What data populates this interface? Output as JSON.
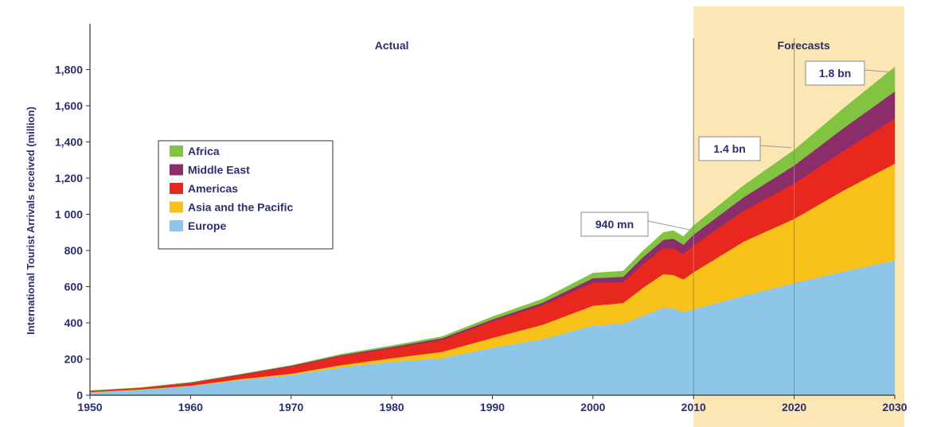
{
  "chart_data": {
    "type": "area",
    "stacked": true,
    "ylabel": "International Tourist Arrivals received (million)",
    "ylim": [
      0,
      2000
    ],
    "xlim": [
      1950,
      2030
    ],
    "x_ticks": [
      "1950",
      "1960",
      "1970",
      "1980",
      "1990",
      "2000",
      "2010",
      "2020",
      "2030"
    ],
    "y_ticks": [
      {
        "value": 0,
        "label": "0"
      },
      {
        "value": 200,
        "label": "200"
      },
      {
        "value": 400,
        "label": "400"
      },
      {
        "value": 600,
        "label": "600"
      },
      {
        "value": 800,
        "label": "800"
      },
      {
        "value": 1000,
        "label": "1 000"
      },
      {
        "value": 1200,
        "label": "1,200"
      },
      {
        "value": 1400,
        "label": "1,400"
      },
      {
        "value": 1600,
        "label": "1,600"
      },
      {
        "value": 1800,
        "label": "1,800"
      }
    ],
    "periods": [
      {
        "label": "Actual",
        "from": 1950,
        "to": 2010,
        "shaded": false
      },
      {
        "label": "Forecasts",
        "from": 2010,
        "to": 2030,
        "shaded": true,
        "color": "#fbe6b4"
      }
    ],
    "reference_lines": [
      2010,
      2020
    ],
    "x": [
      1950,
      1955,
      1960,
      1965,
      1970,
      1975,
      1980,
      1985,
      1990,
      1995,
      2000,
      2003,
      2005,
      2007,
      2008,
      2009,
      2010,
      2015,
      2020,
      2025,
      2030
    ],
    "series": [
      {
        "name": "Europe",
        "color": "#8ec6ea",
        "values": [
          17,
          30,
          50,
          85,
          112,
          155,
          185,
          205,
          262,
          310,
          385,
          395,
          440,
          485,
          480,
          460,
          475,
          550,
          620,
          685,
          745
        ]
      },
      {
        "name": "Asia and the Pacific",
        "color": "#f9c21a",
        "values": [
          1,
          2,
          3,
          5,
          7,
          12,
          20,
          35,
          55,
          80,
          110,
          115,
          155,
          185,
          185,
          180,
          205,
          300,
          355,
          450,
          535
        ]
      },
      {
        "name": "Americas",
        "color": "#e8271f",
        "values": [
          6,
          8,
          15,
          22,
          40,
          50,
          55,
          65,
          92,
          108,
          128,
          115,
          132,
          143,
          146,
          140,
          150,
          170,
          195,
          220,
          250
        ]
      },
      {
        "name": "Middle East",
        "color": "#8b2d6b",
        "values": [
          0.5,
          1,
          2,
          3,
          4,
          5,
          7,
          10,
          10,
          14,
          24,
          30,
          38,
          46,
          55,
          52,
          58,
          75,
          100,
          125,
          149
        ]
      },
      {
        "name": "Africa",
        "color": "#82c341",
        "values": [
          0.5,
          1,
          1,
          2,
          2,
          5,
          7,
          9,
          15,
          20,
          28,
          31,
          35,
          41,
          44,
          45,
          50,
          65,
          85,
          110,
          135
        ]
      }
    ],
    "annotations": [
      {
        "label": "940 mn",
        "year": 2010,
        "value": 940
      },
      {
        "label": "1.4 bn",
        "year": 2020,
        "value": 1360
      },
      {
        "label": "1.8 bn",
        "year": 2030,
        "value": 1814
      }
    ],
    "grid": false,
    "legend_position": "upper-left"
  }
}
